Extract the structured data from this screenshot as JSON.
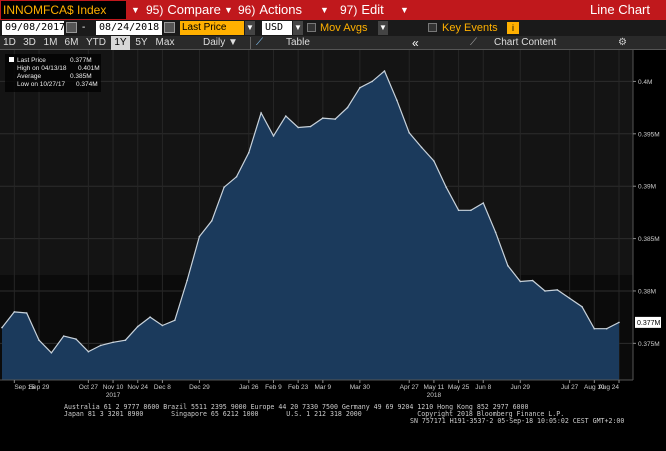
{
  "topbar": {
    "title": "INNOMFCA$ Index",
    "compare_num": "95)",
    "compare_label": "Compare",
    "actions_num": "96)",
    "actions_label": "Actions",
    "edit_num": "97)",
    "edit_label": "Edit",
    "chart_type": "Line Chart"
  },
  "controls": {
    "start_date": "09/08/2017",
    "end_date": "08/24/2018",
    "field": "Last Price",
    "currency": "USD",
    "mov_avgs_label": "Mov Avgs",
    "key_events_label": "Key Events"
  },
  "range_bar": {
    "buttons": [
      "1D",
      "3D",
      "1M",
      "6M",
      "YTD",
      "1Y",
      "5Y",
      "Max"
    ],
    "active": "1Y",
    "frequency": "Daily",
    "table_label": "Table",
    "collapse": "«",
    "chart_content_label": "Chart Content"
  },
  "legend": {
    "last_price_label": "Last Price",
    "last_price_value": "0.377M",
    "high_label": "High on 04/13/18",
    "high_value": "0.401M",
    "average_label": "Average",
    "average_value": "0.385M",
    "low_label": "Low on 10/27/17",
    "low_value": "0.374M"
  },
  "colors": {
    "area_fill": "#1b3a5c",
    "line": "#c9d3dc",
    "accent": "#ffb000",
    "bar_red": "#c0181c"
  },
  "chart_data": {
    "type": "area",
    "ylim": [
      0.3715,
      0.403
    ],
    "y_ticks": [
      {
        "value": 0.375,
        "label": "0.375M"
      },
      {
        "value": 0.38,
        "label": "0.38M"
      },
      {
        "value": 0.385,
        "label": "0.385M"
      },
      {
        "value": 0.39,
        "label": "0.39M"
      },
      {
        "value": 0.395,
        "label": "0.395M"
      },
      {
        "value": 0.4,
        "label": "0.4M"
      }
    ],
    "last_value_label": "0.377M",
    "last_value": 0.377,
    "x_ticks": [
      {
        "date": "2017-09-15",
        "label": "Sep 15"
      },
      {
        "date": "2017-09-29",
        "label": "Sep 29"
      },
      {
        "date": "2017-10-27",
        "label": "Oct 27"
      },
      {
        "date": "2017-11-10",
        "label": "Nov 10"
      },
      {
        "date": "2017-11-24",
        "label": "Nov 24"
      },
      {
        "date": "2017-12-08",
        "label": "Dec 8"
      },
      {
        "date": "2017-12-29",
        "label": "Dec 29"
      },
      {
        "date": "2018-01-26",
        "label": "Jan 26"
      },
      {
        "date": "2018-02-09",
        "label": "Feb 9"
      },
      {
        "date": "2018-02-23",
        "label": "Feb 23"
      },
      {
        "date": "2018-03-09",
        "label": "Mar 9"
      },
      {
        "date": "2018-03-30",
        "label": "Mar 30"
      },
      {
        "date": "2018-04-27",
        "label": "Apr 27"
      },
      {
        "date": "2018-05-11",
        "label": "May 11"
      },
      {
        "date": "2018-05-25",
        "label": "May 25"
      },
      {
        "date": "2018-06-08",
        "label": "Jun 8"
      },
      {
        "date": "2018-06-29",
        "label": "Jun 29"
      },
      {
        "date": "2018-07-27",
        "label": "Jul 27"
      },
      {
        "date": "2018-08-10",
        "label": "Aug 10"
      },
      {
        "date": "2018-08-24",
        "label": "Aug 24"
      }
    ],
    "year_labels": [
      {
        "date": "2017-11-10",
        "label": "2017"
      },
      {
        "date": "2018-05-11",
        "label": "2018"
      }
    ],
    "x_start": "2017-09-08",
    "x_end": "2018-08-24",
    "x": [
      "2017-09-08",
      "2017-09-15",
      "2017-09-22",
      "2017-09-29",
      "2017-10-06",
      "2017-10-13",
      "2017-10-20",
      "2017-10-27",
      "2017-11-03",
      "2017-11-10",
      "2017-11-17",
      "2017-11-24",
      "2017-12-01",
      "2017-12-08",
      "2017-12-15",
      "2017-12-22",
      "2017-12-29",
      "2018-01-05",
      "2018-01-12",
      "2018-01-19",
      "2018-01-26",
      "2018-02-02",
      "2018-02-09",
      "2018-02-16",
      "2018-02-23",
      "2018-03-02",
      "2018-03-09",
      "2018-03-16",
      "2018-03-23",
      "2018-03-30",
      "2018-04-06",
      "2018-04-13",
      "2018-04-20",
      "2018-04-27",
      "2018-05-04",
      "2018-05-11",
      "2018-05-18",
      "2018-05-25",
      "2018-06-01",
      "2018-06-08",
      "2018-06-15",
      "2018-06-22",
      "2018-06-29",
      "2018-07-06",
      "2018-07-13",
      "2018-07-20",
      "2018-07-27",
      "2018-08-03",
      "2018-08-10",
      "2018-08-17",
      "2018-08-24"
    ],
    "values": [
      0.3765,
      0.378,
      0.3779,
      0.3753,
      0.3741,
      0.3757,
      0.3754,
      0.3742,
      0.3748,
      0.3751,
      0.3753,
      0.3766,
      0.3775,
      0.3767,
      0.3772,
      0.381,
      0.3852,
      0.3867,
      0.3899,
      0.3909,
      0.3932,
      0.397,
      0.3948,
      0.3967,
      0.3956,
      0.3957,
      0.3965,
      0.3964,
      0.3975,
      0.3994,
      0.4,
      0.401,
      0.3982,
      0.3951,
      0.3937,
      0.3924,
      0.3899,
      0.3877,
      0.3877,
      0.3884,
      0.3856,
      0.3824,
      0.3809,
      0.381,
      0.38,
      0.3801,
      0.3793,
      0.3785,
      0.3764,
      0.3764,
      0.377
    ]
  },
  "footer": {
    "line1": "Australia 61 2 9777 8600 Brazil 5511 2395 9000 Europe 44 20 7330 7500 Germany 49 69 9204 1210 Hong Kong 852 2977 6000",
    "line2": "Japan 81 3 3201 8900       Singapore 65 6212 1000       U.S. 1 212 318 2000              Copyright 2018 Bloomberg Finance L.P.",
    "line3": "SN 757171 H191-3537-2 05-Sep-18 10:05:02 CEST GMT+2:00"
  }
}
